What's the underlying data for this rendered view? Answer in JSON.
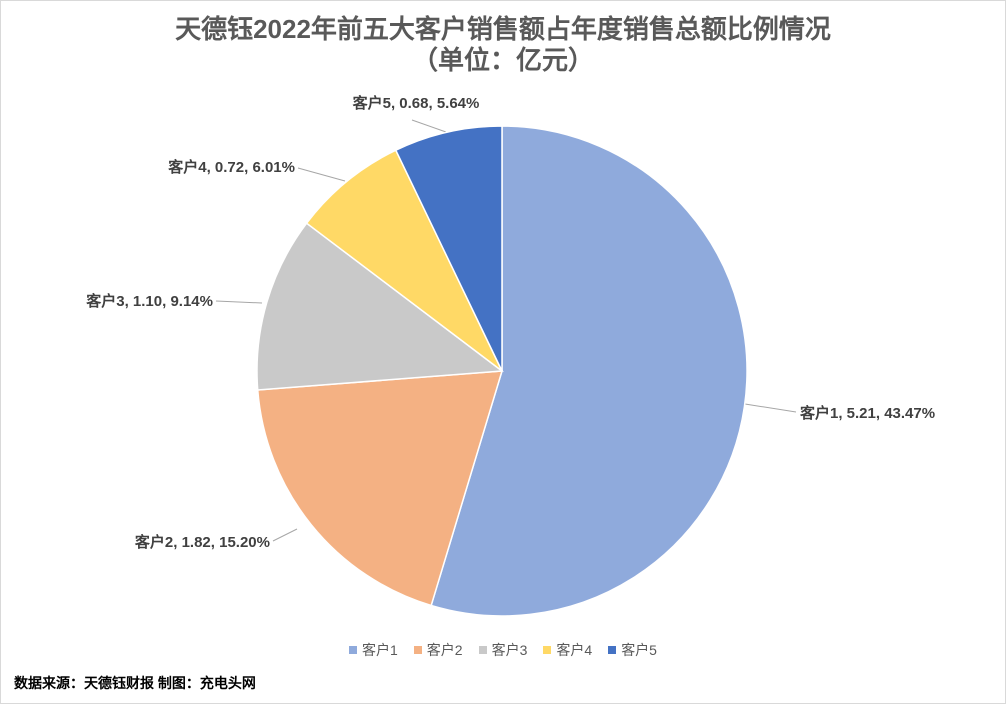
{
  "chart_data": {
    "type": "pie",
    "title": "天德钰2022年前五大客户销售额占年度销售总额比例情况",
    "subtitle": "（单位：亿元）",
    "categories": [
      "客户1",
      "客户2",
      "客户3",
      "客户4",
      "客户5"
    ],
    "values": [
      5.21,
      1.82,
      1.1,
      0.72,
      0.68
    ],
    "percent_of_annual_sales": [
      43.47,
      15.2,
      9.14,
      6.01,
      5.64
    ],
    "colors": [
      "#8FAADC",
      "#F4B183",
      "#C9C9C9",
      "#FFD966",
      "#4472C4"
    ],
    "legend_position": "bottom"
  },
  "source_note": "数据来源：天德钰财报 制图：充电头网"
}
